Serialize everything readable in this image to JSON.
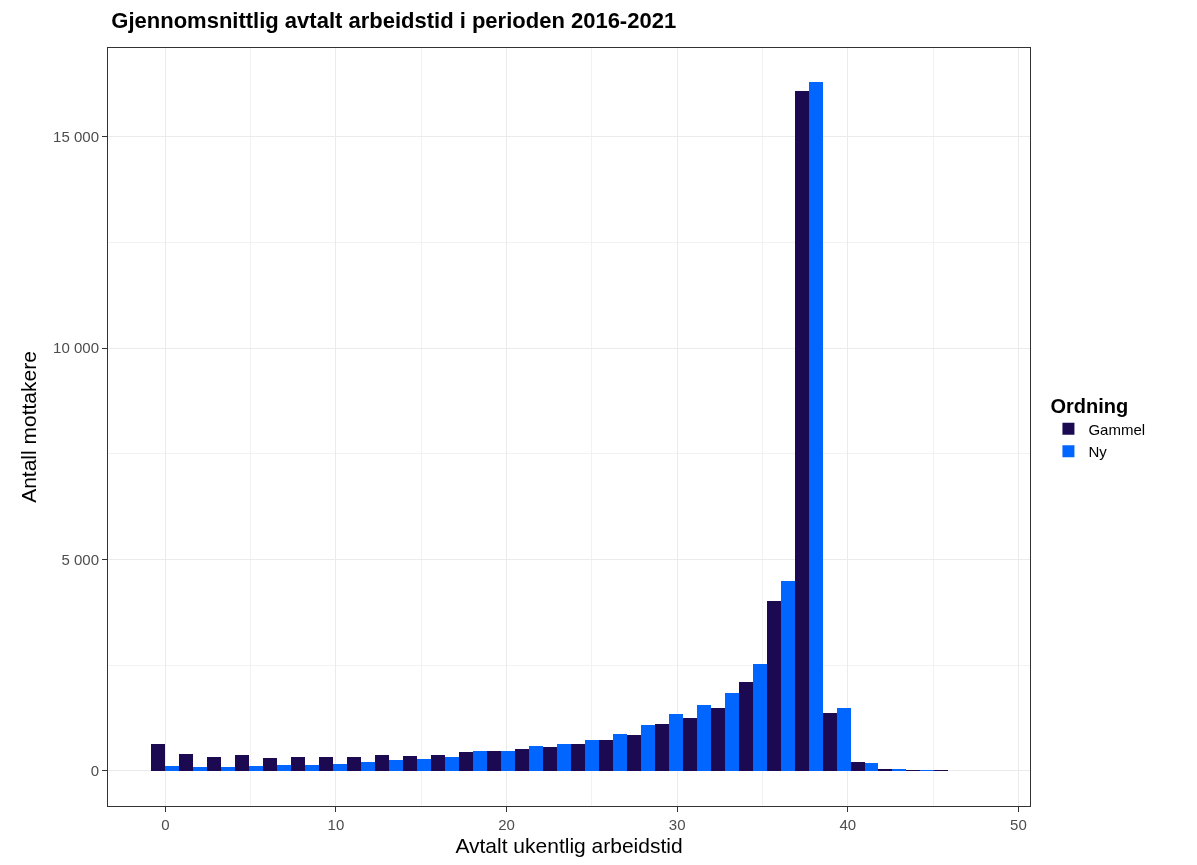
{
  "chart_data": {
    "type": "histogram",
    "title": "Gjennomsnittlig avtalt arbeidstid i perioden 2016-2021",
    "xlabel": "Avtalt ukentlig arbeidstid",
    "ylabel": "Antall mottakere",
    "legend_title": "Ordning",
    "legend": "right",
    "grid": true,
    "bins": [
      -0.84,
      0.8,
      2.44,
      4.08,
      5.72,
      7.36,
      9.0,
      10.64,
      12.28,
      13.92,
      15.56,
      17.2,
      18.84,
      20.48,
      22.12,
      23.76,
      25.4,
      27.04,
      28.68,
      30.32,
      31.96,
      33.6,
      35.24,
      36.88,
      38.52,
      40.16,
      41.8,
      43.44,
      45.08,
      46.72,
      48.36
    ],
    "series": [
      {
        "name": "Gammel",
        "color": "#1b0a52",
        "values": [
          630,
          410,
          330,
          370,
          300,
          320,
          320,
          320,
          380,
          350,
          370,
          450,
          460,
          520,
          560,
          630,
          730,
          840,
          1100,
          1260,
          1490,
          2110,
          4030,
          16090,
          1360,
          220,
          40,
          10,
          10,
          0
        ]
      },
      {
        "name": "Ny",
        "color": "#0066ff",
        "values": [
          110,
          90,
          100,
          110,
          130,
          140,
          160,
          210,
          260,
          280,
          330,
          480,
          480,
          590,
          630,
          720,
          880,
          1080,
          1340,
          1560,
          1840,
          2520,
          4500,
          16290,
          1500,
          190,
          50,
          10,
          0,
          0
        ]
      }
    ],
    "xlim": [
      -3.36,
      50.68
    ],
    "xticks": [
      0,
      10,
      20,
      30,
      40,
      50
    ],
    "ylim": [
      -830,
      17100
    ],
    "yticks": [
      {
        "value": 0,
        "label": "0"
      },
      {
        "value": 5000,
        "label": "5 000"
      },
      {
        "value": 10000,
        "label": "10 000"
      },
      {
        "value": 15000,
        "label": "15 000"
      }
    ]
  }
}
